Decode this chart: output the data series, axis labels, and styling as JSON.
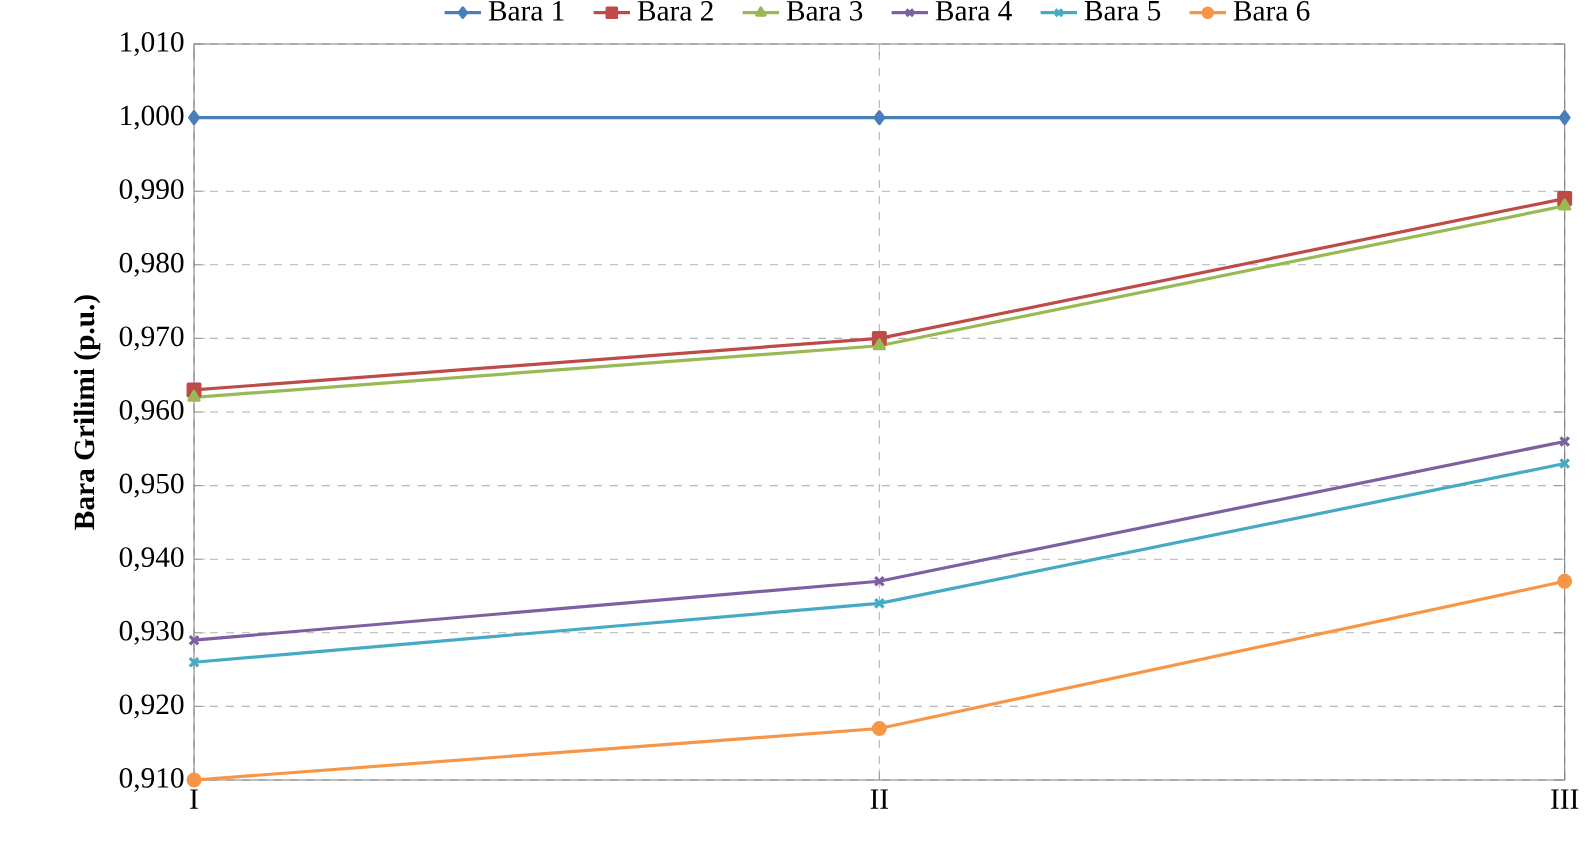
{
  "chart_data": {
    "type": "line",
    "ylabel": "Bara Grilimi (p.u.)",
    "categories": [
      "I",
      "II",
      "III"
    ],
    "series": [
      {
        "name": "Bara 1",
        "color": "#4a7ebb",
        "marker": "diamond",
        "values": [
          1.0,
          1.0,
          1.0
        ]
      },
      {
        "name": "Bara 2",
        "color": "#be4b48",
        "marker": "square",
        "values": [
          0.963,
          0.97,
          0.989
        ]
      },
      {
        "name": "Bara 3",
        "color": "#98b954",
        "marker": "triangle",
        "values": [
          0.962,
          0.969,
          0.988
        ]
      },
      {
        "name": "Bara 4",
        "color": "#7d60a0",
        "marker": "cross",
        "values": [
          0.929,
          0.937,
          0.956
        ]
      },
      {
        "name": "Bara 5",
        "color": "#46aac5",
        "marker": "cross",
        "values": [
          0.926,
          0.934,
          0.953
        ]
      },
      {
        "name": "Bara 6",
        "color": "#f79646",
        "marker": "circle",
        "values": [
          0.91,
          0.917,
          0.937
        ]
      }
    ],
    "ylim": [
      0.91,
      1.01
    ],
    "yticks": [
      {
        "value": 0.91,
        "label": "0,910"
      },
      {
        "value": 0.92,
        "label": "0,920"
      },
      {
        "value": 0.93,
        "label": "0,930"
      },
      {
        "value": 0.94,
        "label": "0,940"
      },
      {
        "value": 0.95,
        "label": "0,950"
      },
      {
        "value": 0.96,
        "label": "0,960"
      },
      {
        "value": 0.97,
        "label": "0,970"
      },
      {
        "value": 0.98,
        "label": "0,980"
      },
      {
        "value": 0.99,
        "label": "0,990"
      },
      {
        "value": 1.0,
        "label": "1,000"
      },
      {
        "value": 1.01,
        "label": "1,010"
      }
    ],
    "grid": true,
    "legend": "top",
    "line_style": "solid"
  }
}
